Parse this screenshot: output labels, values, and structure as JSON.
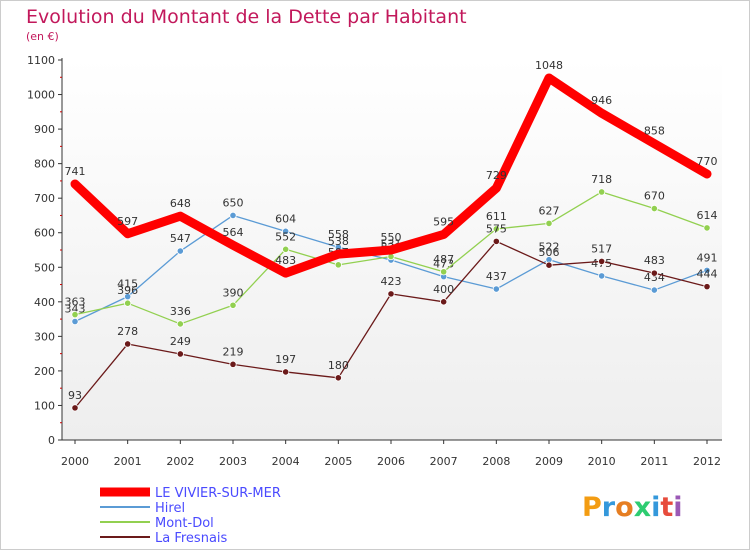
{
  "colors": {
    "title": "#c2185b",
    "le_vivier": "#ff0000",
    "hirel": "#5b9bd5",
    "mont_dol": "#92d050",
    "la_fresnais": "#6b1a1a",
    "legend_text": "#4a4aff",
    "plot_bg_top": "#ffffff",
    "plot_bg_bottom": "#f0f0f0"
  },
  "chart_data": {
    "type": "line",
    "title": "Evolution du Montant de la Dette par Habitant",
    "subtitle": "(en €)",
    "x": [
      "2000",
      "2001",
      "2002",
      "2003",
      "2004",
      "2005",
      "2006",
      "2007",
      "2008",
      "2009",
      "2010",
      "2011",
      "2012"
    ],
    "ylim": [
      0,
      1100
    ],
    "yticks": [
      0,
      100,
      200,
      300,
      400,
      500,
      600,
      700,
      800,
      900,
      1000,
      1100
    ],
    "grid": false,
    "legend": "bottom-left",
    "series": [
      {
        "name": "LE VIVIER-SUR-MER",
        "key": "le_vivier",
        "values": [
          741,
          597,
          648,
          564,
          483,
          538,
          550,
          595,
          729,
          1048,
          946,
          858,
          770
        ]
      },
      {
        "name": "Hirel",
        "key": "hirel",
        "values": [
          343,
          415,
          547,
          650,
          604,
          558,
          521,
          473,
          437,
          522,
          475,
          434,
          491
        ]
      },
      {
        "name": "Mont-Dol",
        "key": "mont_dol",
        "values": [
          363,
          396,
          336,
          390,
          552,
          507,
          531,
          487,
          611,
          627,
          718,
          670,
          614
        ]
      },
      {
        "name": "La Fresnais",
        "key": "la_fresnais",
        "values": [
          93,
          278,
          249,
          219,
          197,
          180,
          423,
          400,
          575,
          506,
          517,
          483,
          444
        ]
      }
    ]
  },
  "logo": {
    "text": "Proxiti"
  }
}
